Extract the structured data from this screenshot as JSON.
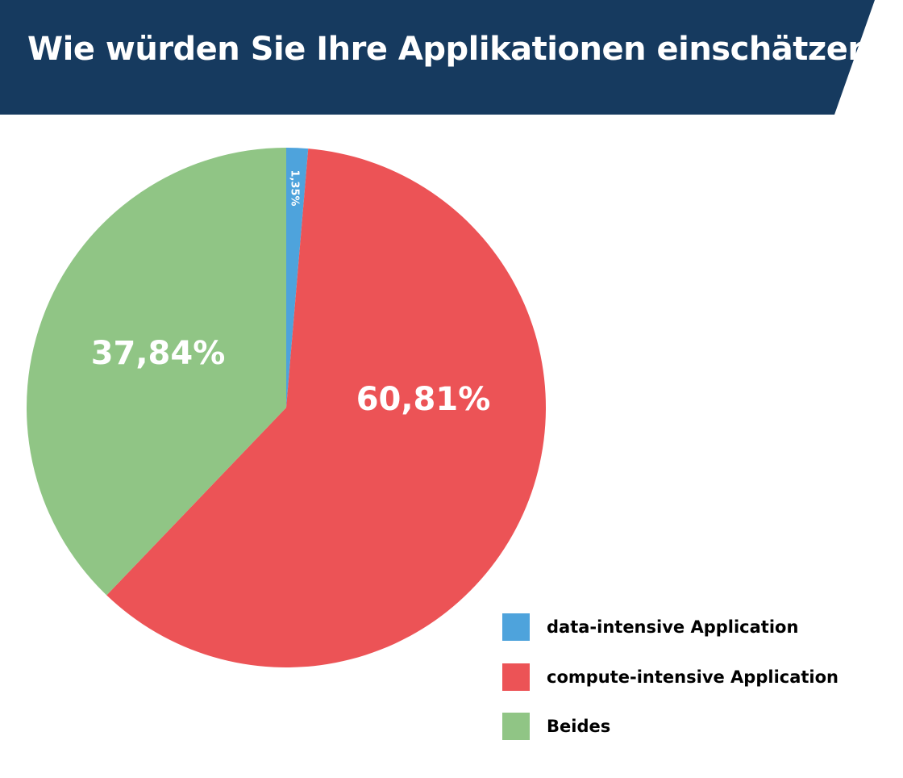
{
  "chart_data": {
    "type": "pie",
    "title": "Wie würden Sie Ihre Applikationen einschätzen?",
    "slices": [
      {
        "label": "data-intensive Application",
        "value": 1.35,
        "display": "1,35%",
        "color": "#4ea3dc"
      },
      {
        "label": "compute-intensive Application",
        "value": 60.81,
        "display": "60,81%",
        "color": "#ec5356"
      },
      {
        "label": "Beides",
        "value": 37.84,
        "display": "37,84%",
        "color": "#90c585"
      }
    ],
    "legend_position": "bottom-right",
    "start_angle": "top, clockwise"
  },
  "colors": {
    "banner": "#163a5f"
  }
}
